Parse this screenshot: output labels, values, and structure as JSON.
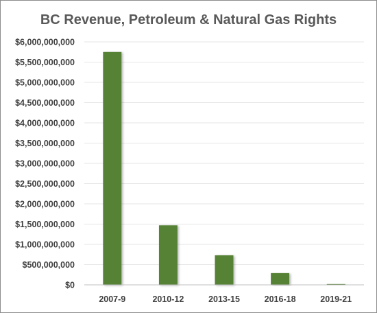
{
  "chart_data": {
    "type": "bar",
    "title": "BC Revenue, Petroleum & Natural Gas Rights",
    "xlabel": "",
    "ylabel": "",
    "categories": [
      "2007-9",
      "2010-12",
      "2013-15",
      "2016-18",
      "2019-21"
    ],
    "values": [
      5750000000,
      1470000000,
      730000000,
      290000000,
      20000000
    ],
    "ylim": [
      0,
      6000000000
    ],
    "yticks": [
      0,
      500000000,
      1000000000,
      1500000000,
      2000000000,
      2500000000,
      3000000000,
      3500000000,
      4000000000,
      4500000000,
      5000000000,
      5500000000,
      6000000000
    ],
    "ytick_labels": [
      "$0",
      "$500,000,000",
      "$1,000,000,000",
      "$1,500,000,000",
      "$2,000,000,000",
      "$2,500,000,000",
      "$3,000,000,000",
      "$3,500,000,000",
      "$4,000,000,000",
      "$4,500,000,000",
      "$5,000,000,000",
      "$5,500,000,000",
      "$6,000,000,000"
    ],
    "grid": true,
    "legend": "none",
    "bar_color": "#548235"
  }
}
